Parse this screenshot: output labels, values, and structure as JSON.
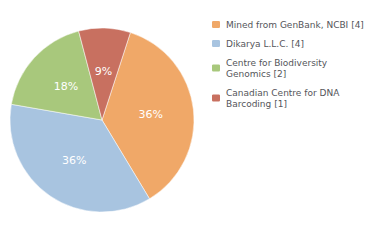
{
  "chart_data": {
    "type": "pie",
    "categories": [
      "Mined from GenBank, NCBI [4]",
      "Dikarya L.L.C. [4]",
      "Centre for Biodiversity\nGenomics [2]",
      "Canadian Centre for DNA\nBarcoding [1]"
    ],
    "values": [
      36,
      36,
      18,
      9
    ],
    "value_labels": [
      "36%",
      "36%",
      "18%",
      "9%"
    ],
    "colors": [
      "#f0a868",
      "#a8c4e0",
      "#a8c87c",
      "#c87060"
    ],
    "data_labels": true,
    "legend": "right"
  }
}
